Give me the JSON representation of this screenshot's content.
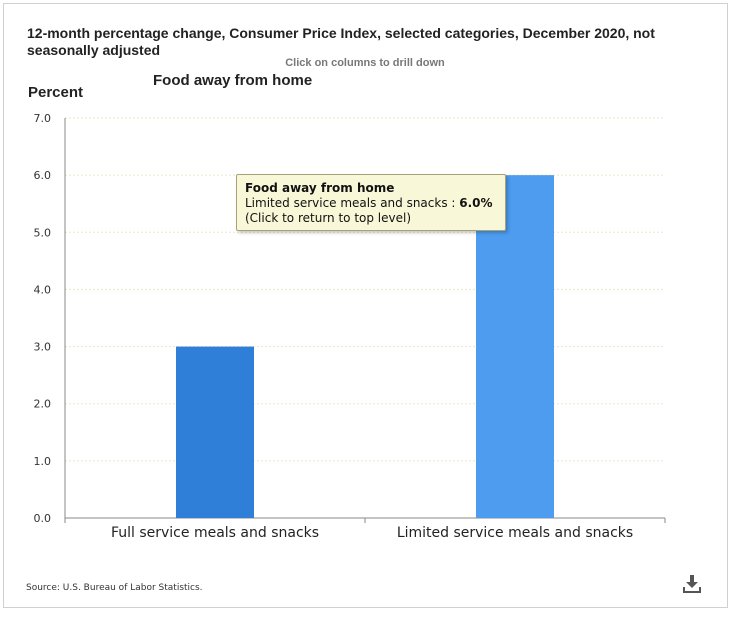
{
  "header": {
    "title": "12-month percentage change, Consumer Price Index, selected categories, December 2020, not seasonally adjusted",
    "hint": "Click on columns to drill down"
  },
  "chart_data": {
    "type": "bar",
    "title": "Food away from home",
    "ylabel": "Percent",
    "xlabel": "",
    "categories": [
      "Full service meals and snacks",
      "Limited service meals and snacks"
    ],
    "values": [
      3.0,
      6.0
    ],
    "ylim": [
      0,
      7
    ],
    "yticks": [
      "0.0",
      "1.0",
      "2.0",
      "3.0",
      "4.0",
      "5.0",
      "6.0",
      "7.0"
    ],
    "grid": true,
    "bar_colors": [
      "#2f7ed8",
      "#4d9cf0"
    ]
  },
  "tooltip": {
    "title": "Food away from home",
    "series_label": "Limited service meals and snacks : ",
    "value": "6.0%",
    "action": "(Click to return to top level)"
  },
  "footer": {
    "source": "Source: U.S. Bureau of Labor Statistics."
  },
  "icons": {
    "download": "download-icon"
  }
}
